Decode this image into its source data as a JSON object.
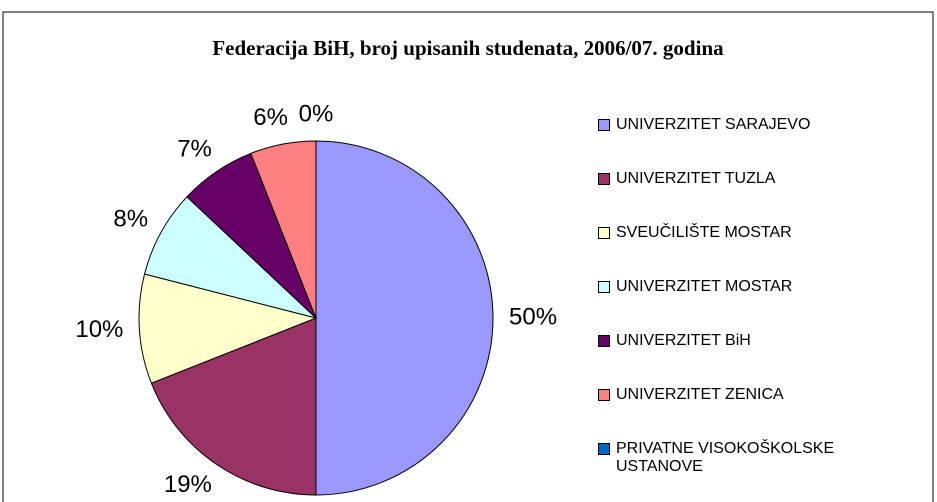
{
  "chart_data": {
    "type": "pie",
    "title": "Federacija BiH, broj upisanih studenata, 2006/07. godina",
    "categories": [
      "UNIVERZITET SARAJEVO",
      "UNIVERZITET  TUZLA",
      "SVEUČILIŠTE MOSTAR",
      "UNIVERZITET MOSTAR",
      "UNIVERZITET  BiH",
      "UNIVERZITET ZENICA",
      "PRIVATNE VISOKOŠKOLSKE USTANOVE"
    ],
    "values": [
      50,
      19,
      10,
      8,
      7,
      6,
      0
    ],
    "value_labels": [
      "50%",
      "19%",
      "10%",
      "8%",
      "7%",
      "6%",
      "0%"
    ],
    "colors": [
      "#9999ff",
      "#993366",
      "#ffffcc",
      "#ccffff",
      "#660066",
      "#ff8080",
      "#0066cc"
    ],
    "legend": "right"
  }
}
